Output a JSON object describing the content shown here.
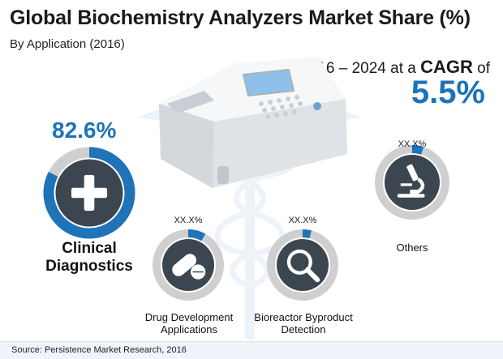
{
  "header": {
    "title": "Global Biochemistry Analyzers Market Share (%)",
    "subtitle": "By Application (2016)"
  },
  "cagr": {
    "period": "2016 – 2024",
    "at_a": " at a ",
    "label": "CAGR",
    "of": " of",
    "value": "5.5%"
  },
  "source": "Source: Persistence Market Research, 2016",
  "colors": {
    "accent": "#1e73b9",
    "ring_gray": "#cfcfcf",
    "icon_bg": "#3c4650"
  },
  "chart_data": {
    "type": "donut",
    "title": "Global Biochemistry Analyzers Market Share (%)",
    "subtitle": "By Application (2016)",
    "unit": "%",
    "segments": [
      {
        "name": "Clinical Diagnostics",
        "label": "82.6%",
        "value": 82.6,
        "icon": "plus-icon"
      },
      {
        "name": "Drug Development Applications",
        "label": "XX.X%",
        "value": null,
        "display_fraction": 0.08,
        "icon": "pills-icon"
      },
      {
        "name": "Bioreactor Byproduct Detection",
        "label": "XX.X%",
        "value": null,
        "display_fraction": 0.04,
        "icon": "magnifier-icon"
      },
      {
        "name": "Others",
        "label": "XX.X%",
        "value": null,
        "display_fraction": 0.05,
        "icon": "microscope-icon"
      }
    ]
  }
}
